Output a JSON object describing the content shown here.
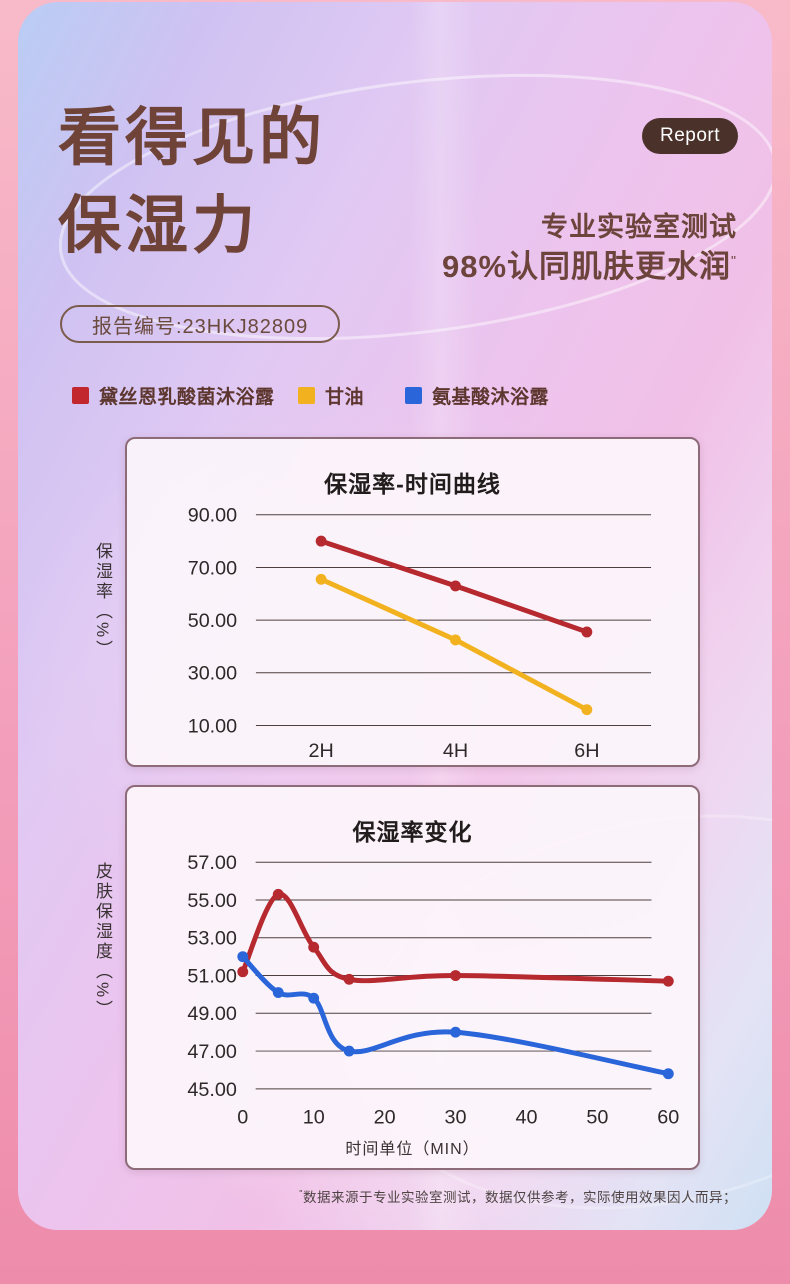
{
  "badge": {
    "label": "Report"
  },
  "header": {
    "title_line1": "看得见的",
    "title_line2": "保湿力",
    "subtitle_line1": "专业实验室测试",
    "subtitle_line2": "98%认同肌肤更水润",
    "subtitle_superscript": "\"",
    "report_no": "报告编号:23HKJ82809"
  },
  "legend": {
    "items": [
      {
        "label": "黛丝恩乳酸菌沐浴露",
        "color": "#c1272d"
      },
      {
        "label": "甘油",
        "color": "#f2b21f"
      },
      {
        "label": "氨基酸沐浴露",
        "color": "#2a65d9"
      }
    ]
  },
  "footnote": {
    "superscript": "\"",
    "text": "数据来源于专业实验室测试，数据仅供参考，实际使用效果因人而异；"
  },
  "chart_data": [
    {
      "type": "line",
      "title": "保湿率-时间曲线",
      "ylabel": "保湿率（%）",
      "xlabel": "",
      "categories": [
        "2H",
        "4H",
        "6H"
      ],
      "y_ticks": [
        90,
        70,
        50,
        30,
        10
      ],
      "ylim": [
        10,
        90
      ],
      "grid": true,
      "smooth": false,
      "legend_position": "above-panel",
      "series": [
        {
          "name": "黛丝恩乳酸菌沐浴露",
          "color": "#b5292f",
          "values": [
            80,
            63,
            45.5
          ]
        },
        {
          "name": "甘油",
          "color": "#f2b21f",
          "values": [
            65.5,
            42.5,
            16
          ]
        }
      ]
    },
    {
      "type": "line",
      "title": "保湿率变化",
      "ylabel": "皮肤保湿度（%）",
      "xlabel": "时间单位（MIN）",
      "x": [
        0,
        5,
        10,
        15,
        30,
        60
      ],
      "x_ticks": [
        0,
        10,
        20,
        30,
        40,
        50,
        60
      ],
      "xlim": [
        0,
        60
      ],
      "y_ticks": [
        57,
        55,
        53,
        51,
        49,
        47,
        45
      ],
      "ylim": [
        45,
        57
      ],
      "grid": true,
      "smooth": true,
      "legend_position": "above-panel",
      "series": [
        {
          "name": "黛丝恩乳酸菌沐浴露",
          "color": "#b5292f",
          "values": [
            51.2,
            55.3,
            52.5,
            50.8,
            51.0,
            50.7
          ]
        },
        {
          "name": "氨基酸沐浴露",
          "color": "#2a65d9",
          "values": [
            52.0,
            50.1,
            49.8,
            47.0,
            48.0,
            45.8
          ]
        }
      ]
    }
  ]
}
